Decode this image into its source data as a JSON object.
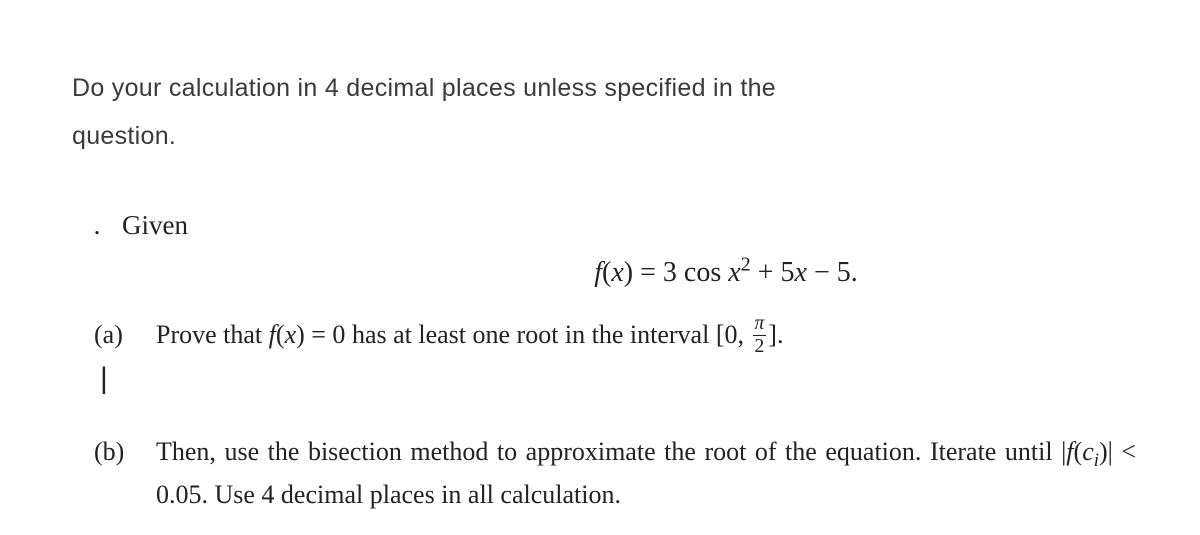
{
  "instruction": {
    "line1": "Do your calculation in 4 decimal places unless specified in the",
    "line2": "question."
  },
  "given": {
    "dot": ".",
    "label": "Given"
  },
  "equation": {
    "lhs_f": "f",
    "lhs_open": "(",
    "lhs_var": "x",
    "lhs_close": ")",
    "eq": " = ",
    "coef1": "3",
    "cos": " cos ",
    "var2": "x",
    "sup2": "2",
    "plus": " + 5",
    "var3": "x",
    "minus": " − 5."
  },
  "partA": {
    "label": "(a)",
    "pre": "Prove that ",
    "f": "f",
    "open": "(",
    "x": "x",
    "close_eq": ") = 0",
    "mid": " has at least one root in the interval ",
    "lb": "[0, ",
    "pi": "π",
    "den": "2",
    "rb": "].",
    "cursor": "|"
  },
  "partB": {
    "label": "(b)",
    "line1_pre": "Then, use the bisection method to approximate the root of the equation.",
    "line2_pre": "Iterate until |",
    "f": "f",
    "open": "(",
    "c": "c",
    "sub_i": "i",
    "close": ")| < 0.05.",
    "line2_post": " Use 4 decimal places in all calculation."
  },
  "style": {
    "bg": "#ffffff",
    "text_color": "#222222",
    "instr_color": "#3a3a3a",
    "instr_fontsize": 25,
    "body_fontsize": 26,
    "eq_fontsize": 28
  }
}
